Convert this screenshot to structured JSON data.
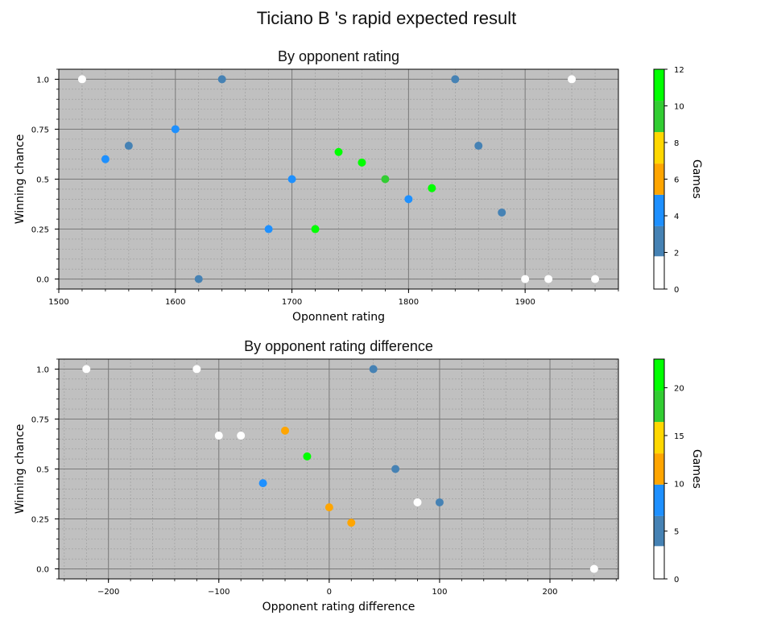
{
  "page": {
    "title": "Ticiano B 's rapid expected result"
  },
  "colorbar_palette": [
    {
      "from_frac": 0.0,
      "to_frac": 0.149,
      "color": "#ffffff"
    },
    {
      "from_frac": 0.149,
      "to_frac": 0.286,
      "color": "#4682b4"
    },
    {
      "from_frac": 0.286,
      "to_frac": 0.429,
      "color": "#1e90ff"
    },
    {
      "from_frac": 0.429,
      "to_frac": 0.571,
      "color": "#ffa500"
    },
    {
      "from_frac": 0.571,
      "to_frac": 0.714,
      "color": "#ffd700"
    },
    {
      "from_frac": 0.714,
      "to_frac": 0.857,
      "color": "#32cd32"
    },
    {
      "from_frac": 0.857,
      "to_frac": 1.0,
      "color": "#00ff00"
    }
  ],
  "chart_data": [
    {
      "type": "scatter",
      "title": "By opponent rating",
      "xlabel": "Oponnent rating",
      "ylabel": "Winning chance",
      "xlim": [
        1500,
        1980
      ],
      "ylim": [
        -0.05,
        1.05
      ],
      "xticks": [
        1500,
        1600,
        1700,
        1800,
        1900
      ],
      "yticks": [
        0.0,
        0.25,
        0.5,
        0.75,
        1.0
      ],
      "ytick_labels": [
        "0.0",
        "0.25",
        "0.5",
        "0.75",
        "1.0"
      ],
      "grid": true,
      "background": "#c0c0c0",
      "colorbar": {
        "label": "Games",
        "range": [
          0,
          12
        ],
        "ticks": [
          0,
          2,
          4,
          6,
          8,
          10,
          12
        ]
      },
      "points": [
        {
          "x": 1520,
          "y": 1.0,
          "games": 1
        },
        {
          "x": 1540,
          "y": 0.6,
          "games": 5
        },
        {
          "x": 1560,
          "y": 0.667,
          "games": 3
        },
        {
          "x": 1600,
          "y": 0.75,
          "games": 4
        },
        {
          "x": 1620,
          "y": 0.0,
          "games": 2
        },
        {
          "x": 1640,
          "y": 1.0,
          "games": 2
        },
        {
          "x": 1680,
          "y": 0.25,
          "games": 4
        },
        {
          "x": 1700,
          "y": 0.5,
          "games": 4
        },
        {
          "x": 1720,
          "y": 0.25,
          "games": 12
        },
        {
          "x": 1740,
          "y": 0.636,
          "games": 11
        },
        {
          "x": 1760,
          "y": 0.583,
          "games": 12
        },
        {
          "x": 1780,
          "y": 0.5,
          "games": 10
        },
        {
          "x": 1800,
          "y": 0.4,
          "games": 5
        },
        {
          "x": 1820,
          "y": 0.455,
          "games": 11
        },
        {
          "x": 1840,
          "y": 1.0,
          "games": 2
        },
        {
          "x": 1860,
          "y": 0.667,
          "games": 3
        },
        {
          "x": 1880,
          "y": 0.333,
          "games": 3
        },
        {
          "x": 1900,
          "y": 0.0,
          "games": 1
        },
        {
          "x": 1920,
          "y": 0.0,
          "games": 1
        },
        {
          "x": 1940,
          "y": 1.0,
          "games": 1
        },
        {
          "x": 1960,
          "y": 0.0,
          "games": 1
        }
      ]
    },
    {
      "type": "scatter",
      "title": "By opponent rating difference",
      "xlabel": "Opponent rating difference",
      "ylabel": "Winning chance",
      "xlim": [
        -245,
        262
      ],
      "ylim": [
        -0.05,
        1.05
      ],
      "xticks": [
        -200,
        -100,
        0,
        100,
        200
      ],
      "xtick_labels": [
        "−200",
        "−100",
        "0",
        "100",
        "200"
      ],
      "yticks": [
        0.0,
        0.25,
        0.5,
        0.75,
        1.0
      ],
      "ytick_labels": [
        "0.0",
        "0.25",
        "0.5",
        "0.75",
        "1.0"
      ],
      "grid": true,
      "background": "#c0c0c0",
      "colorbar": {
        "label": "Games",
        "range": [
          0,
          23
        ],
        "ticks": [
          0,
          5,
          10,
          15,
          20
        ]
      },
      "points": [
        {
          "x": -220,
          "y": 1.0,
          "games": 1
        },
        {
          "x": -120,
          "y": 1.0,
          "games": 1
        },
        {
          "x": -100,
          "y": 0.667,
          "games": 3
        },
        {
          "x": -80,
          "y": 0.667,
          "games": 3
        },
        {
          "x": -60,
          "y": 0.429,
          "games": 7
        },
        {
          "x": -40,
          "y": 0.692,
          "games": 13
        },
        {
          "x": -20,
          "y": 0.563,
          "games": 22
        },
        {
          "x": 0,
          "y": 0.308,
          "games": 13
        },
        {
          "x": 20,
          "y": 0.231,
          "games": 13
        },
        {
          "x": 40,
          "y": 1.0,
          "games": 4
        },
        {
          "x": 60,
          "y": 0.5,
          "games": 4
        },
        {
          "x": 80,
          "y": 0.333,
          "games": 3
        },
        {
          "x": 100,
          "y": 0.333,
          "games": 6
        },
        {
          "x": 240,
          "y": 0.0,
          "games": 1
        }
      ]
    }
  ]
}
